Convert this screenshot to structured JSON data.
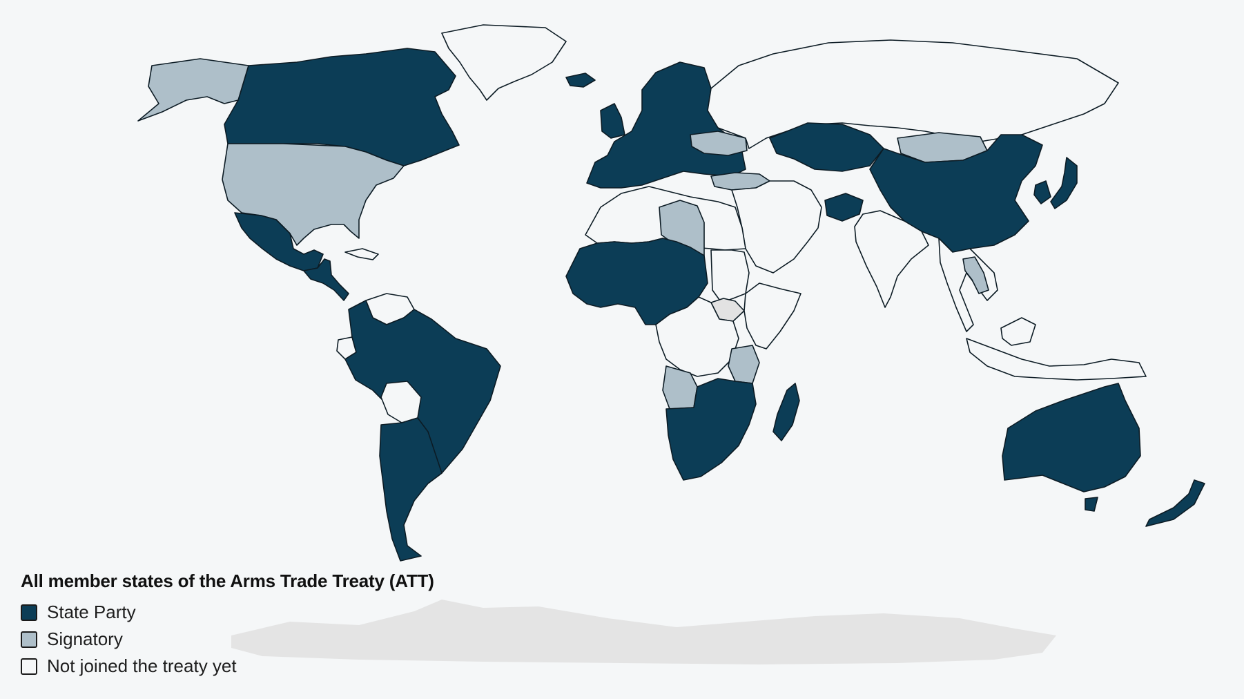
{
  "map": {
    "legend": {
      "title": "All member states of the Arms Trade Treaty (ATT)",
      "items": [
        {
          "label": "State Party",
          "color": "#0c3d56"
        },
        {
          "label": "Signatory",
          "color": "#aebfc9"
        },
        {
          "label": "Not joined the treaty yet",
          "color": "#f5f7f8"
        }
      ]
    },
    "no_data_color": "#e2e2e2",
    "regions": [
      {
        "name": "Greenland",
        "status": "not-joined"
      },
      {
        "name": "Canada",
        "status": "state-party"
      },
      {
        "name": "United States",
        "status": "signatory"
      },
      {
        "name": "Alaska",
        "status": "signatory"
      },
      {
        "name": "Mexico",
        "status": "state-party"
      },
      {
        "name": "Central America",
        "status": "state-party"
      },
      {
        "name": "Cuba",
        "status": "not-joined"
      },
      {
        "name": "Venezuela",
        "status": "not-joined"
      },
      {
        "name": "Brazil",
        "status": "state-party"
      },
      {
        "name": "Bolivia",
        "status": "not-joined"
      },
      {
        "name": "Ecuador",
        "status": "not-joined"
      },
      {
        "name": "Argentina and Chile",
        "status": "state-party"
      },
      {
        "name": "Iceland",
        "status": "state-party"
      },
      {
        "name": "Europe",
        "status": "state-party"
      },
      {
        "name": "Ukraine",
        "status": "signatory"
      },
      {
        "name": "Russia",
        "status": "not-joined"
      },
      {
        "name": "Turkey",
        "status": "signatory"
      },
      {
        "name": "Kazakhstan",
        "status": "state-party"
      },
      {
        "name": "Mongolia",
        "status": "signatory"
      },
      {
        "name": "China",
        "status": "state-party"
      },
      {
        "name": "Japan",
        "status": "state-party"
      },
      {
        "name": "Korea",
        "status": "state-party"
      },
      {
        "name": "Middle East",
        "status": "not-joined"
      },
      {
        "name": "Afghanistan",
        "status": "state-party"
      },
      {
        "name": "India",
        "status": "not-joined"
      },
      {
        "name": "Southeast Asia",
        "status": "not-joined"
      },
      {
        "name": "Thailand",
        "status": "signatory"
      },
      {
        "name": "Indonesia",
        "status": "not-joined"
      },
      {
        "name": "North Africa",
        "status": "not-joined"
      },
      {
        "name": "Libya",
        "status": "signatory"
      },
      {
        "name": "West Africa",
        "status": "state-party"
      },
      {
        "name": "Sudan",
        "status": "not-joined"
      },
      {
        "name": "South Sudan",
        "status": "no-data"
      },
      {
        "name": "Horn of Africa",
        "status": "not-joined"
      },
      {
        "name": "Central Africa",
        "status": "not-joined"
      },
      {
        "name": "Tanzania",
        "status": "signatory"
      },
      {
        "name": "Angola",
        "status": "signatory"
      },
      {
        "name": "Southern Africa",
        "status": "state-party"
      },
      {
        "name": "Madagascar",
        "status": "state-party"
      },
      {
        "name": "Australia",
        "status": "state-party"
      },
      {
        "name": "New Zealand",
        "status": "state-party"
      },
      {
        "name": "Antarctica",
        "status": "no-data"
      }
    ]
  }
}
